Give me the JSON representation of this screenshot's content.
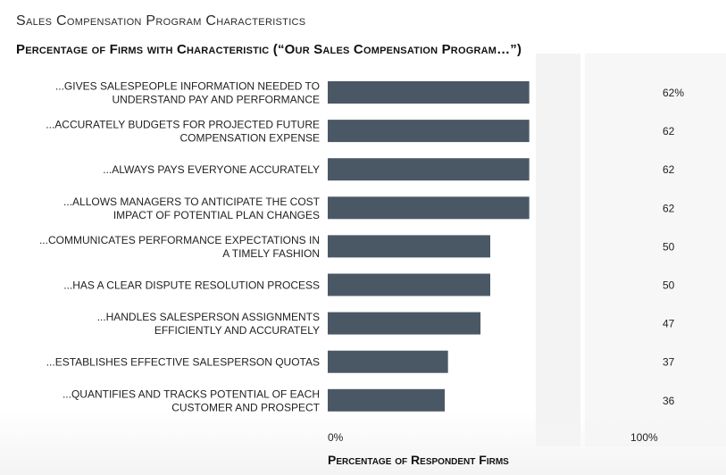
{
  "page": {
    "title": "Sales Compensation Program Characteristics",
    "subtitle": "Percentage of Firms with Characteristic (“Our Sales Compensation Program…”)"
  },
  "colors": {
    "bar": "#4a5866",
    "text": "#222222",
    "background": "#ffffff",
    "decor": "#f1f1f1"
  },
  "chart_data": {
    "type": "bar",
    "orientation": "horizontal",
    "title": "Sales Compensation Program Characteristics",
    "subtitle": "Percentage of Firms with Characteristic (“Our Sales Compensation Program…”)",
    "xlabel": "Percentage of Respondent Firms",
    "ylabel": "",
    "xlim": [
      0,
      100
    ],
    "x_ticks": [
      "0%",
      "100%"
    ],
    "categories": [
      [
        "...GIVES SALESPEOPLE INFORMATION NEEDED TO",
        "UNDERSTAND PAY AND PERFORMANCE"
      ],
      [
        "...ACCURATELY BUDGETS FOR PROJECTED FUTURE",
        "COMPENSATION EXPENSE"
      ],
      [
        "...ALWAYS PAYS EVERYONE ACCURATELY"
      ],
      [
        "...ALLOWS MANAGERS TO ANTICIPATE THE COST",
        "IMPACT OF POTENTIAL PLAN CHANGES"
      ],
      [
        "...COMMUNICATES PERFORMANCE EXPECTATIONS IN",
        "A TIMELY FASHION"
      ],
      [
        "...HAS A CLEAR DISPUTE RESOLUTION PROCESS"
      ],
      [
        "...HANDLES SALESPERSON ASSIGNMENTS",
        "EFFICIENTLY AND ACCURATELY"
      ],
      [
        "...ESTABLISHES EFFECTIVE SALESPERSON QUOTAS"
      ],
      [
        "...QUANTIFIES AND TRACKS POTENTIAL OF EACH",
        "CUSTOMER AND PROSPECT"
      ]
    ],
    "values": [
      62,
      62,
      62,
      62,
      50,
      50,
      47,
      37,
      36
    ],
    "value_labels": [
      "62%",
      "62",
      "62",
      "62",
      "50",
      "50",
      "47",
      "37",
      "36"
    ],
    "grid": false,
    "legend": "none"
  }
}
